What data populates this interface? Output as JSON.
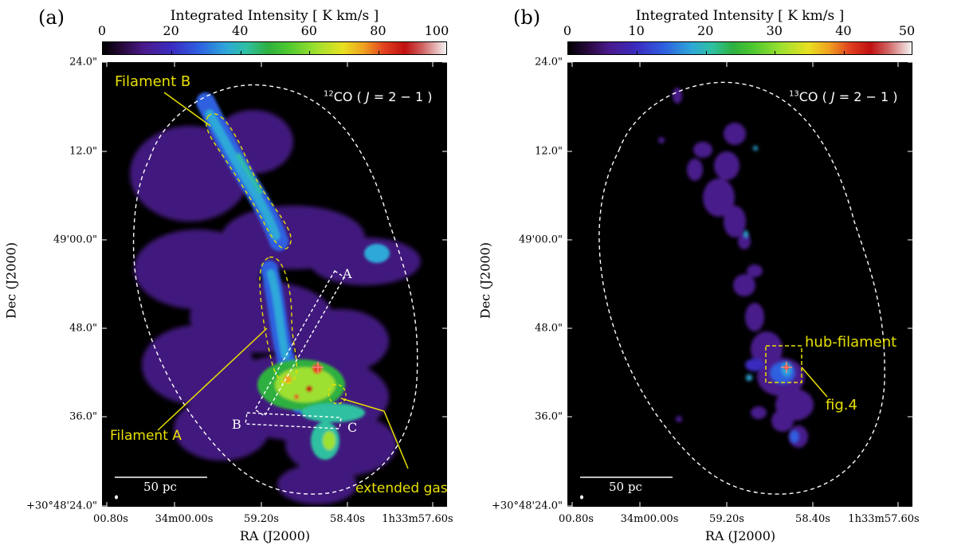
{
  "figure": {
    "panels": [
      {
        "letter": "(a)",
        "colorbar": {
          "title": "Integrated Intensity [ K km/s ]",
          "ticks": [
            "0",
            "20",
            "40",
            "60",
            "80",
            "100"
          ],
          "min": 0,
          "max": 100
        },
        "tracer": {
          "iso": "12",
          "species": "CO (",
          "italic": "J",
          "rest": " = 2 − 1 )"
        },
        "y_ticks": [
          "24.0\"",
          "12.0\"",
          "49'00.0\"",
          "48.0\"",
          "36.0\"",
          "+30°48'24.0\""
        ],
        "x_ticks": [
          "00.80s",
          "34m00.00s",
          "59.20s",
          "58.40s",
          "1h33m57.60s"
        ],
        "xlabel": "RA (J2000)",
        "ylabel": "Dec (J2000)",
        "scale_bar": "50 pc",
        "annotations": {
          "filament_b": "Filament B",
          "filament_a": "Filament A",
          "extended_gas": "extended gas",
          "cut_a": "A",
          "cut_b": "B",
          "cut_c": "C"
        }
      },
      {
        "letter": "(b)",
        "colorbar": {
          "title": "Integrated Intensity [ K km/s ]",
          "ticks": [
            "0",
            "10",
            "20",
            "30",
            "40",
            "50"
          ],
          "min": 0,
          "max": 50
        },
        "tracer": {
          "iso": "13",
          "species": "CO (",
          "italic": "J",
          "rest": " = 2 − 1 )"
        },
        "y_ticks": [
          "24.0\"",
          "12.0\"",
          "49'00.0\"",
          "48.0\"",
          "36.0\"",
          "+30°48'24.0\""
        ],
        "x_ticks": [
          "00.80s",
          "34m00.00s",
          "59.20s",
          "58.40s",
          "1h33m57.60s"
        ],
        "xlabel": "RA (J2000)",
        "ylabel": "Dec (J2000)",
        "scale_bar": "50 pc",
        "annotations": {
          "hub_filament": "hub-filament",
          "fig_ref": "fig.4"
        }
      }
    ],
    "colors": {
      "annotation_yellow": "#e8e000",
      "outline_white": "#ffffff",
      "map_background": "#000000"
    }
  }
}
